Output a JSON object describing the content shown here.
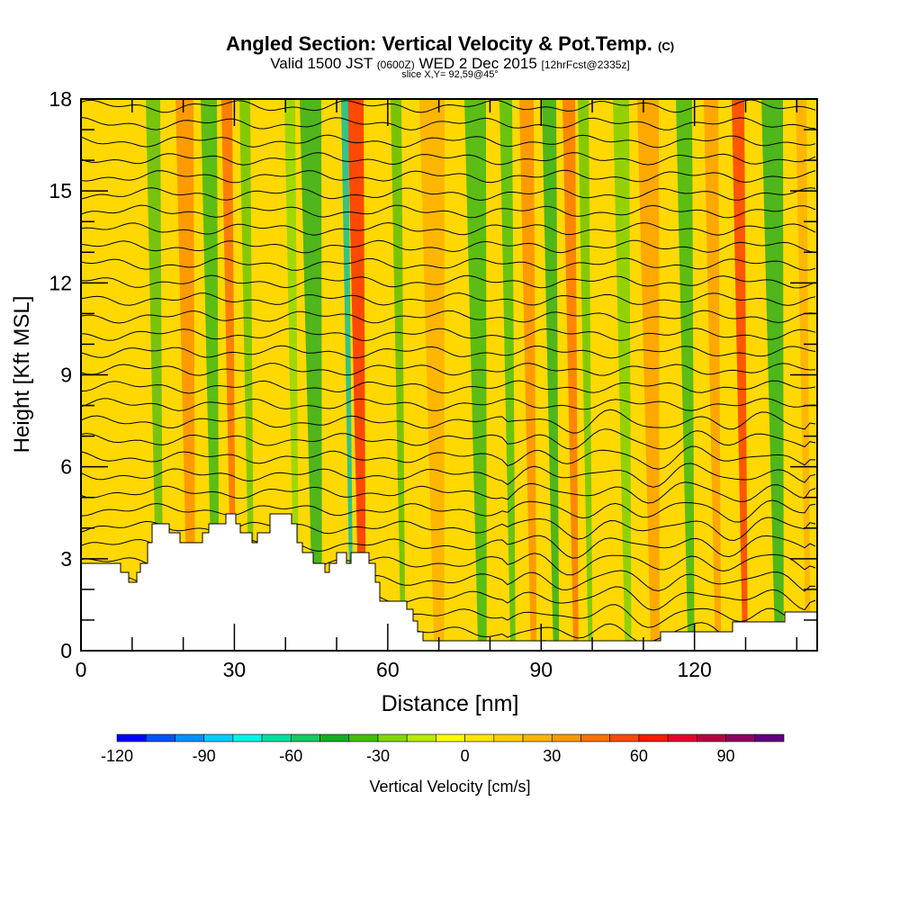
{
  "chart_data": {
    "type": "heatmap",
    "title": "Angled Section: Vertical Velocity & Pot.Temp.",
    "title_suffix": "(C)",
    "subtitle_main": "Valid 1500 JST",
    "subtitle_utc": "(0600Z)",
    "subtitle_date": "WED 2 Dec 2015",
    "subtitle_fcst": "[12hrFcst@2335z]",
    "slice_label": "slice X,Y= 92,59@45°",
    "xlabel": "Distance [nm]",
    "ylabel": "Height [Kft MSL]",
    "xlim": [
      0,
      144
    ],
    "ylim": [
      0,
      18
    ],
    "xticks": [
      "0",
      "30",
      "60",
      "90",
      "120"
    ],
    "xtick_values": [
      0,
      30,
      60,
      90,
      120
    ],
    "yticks": [
      "0",
      "3",
      "6",
      "9",
      "12",
      "15",
      "18"
    ],
    "ytick_values": [
      0,
      3,
      6,
      9,
      12,
      15,
      18
    ],
    "contour_field": "Potential Temperature",
    "colorbar": {
      "label": "Vertical Velocity [cm/s]",
      "range": [
        -120,
        110
      ],
      "step": 10,
      "tick_labels": [
        "-120",
        "-90",
        "-60",
        "-30",
        "0",
        "30",
        "60",
        "90"
      ],
      "tick_values": [
        -120,
        -90,
        -60,
        -30,
        0,
        30,
        60,
        90
      ],
      "colors": [
        "#0000ff",
        "#0050ff",
        "#0090ff",
        "#00ccff",
        "#00f5e6",
        "#00e0a0",
        "#10cc60",
        "#10b020",
        "#40c000",
        "#80d800",
        "#b8ec00",
        "#ffff00",
        "#ffe600",
        "#ffcc00",
        "#ffb400",
        "#ff9800",
        "#ff7000",
        "#ff4800",
        "#ff1800",
        "#e8002a",
        "#b80040",
        "#900060",
        "#600080"
      ]
    }
  }
}
